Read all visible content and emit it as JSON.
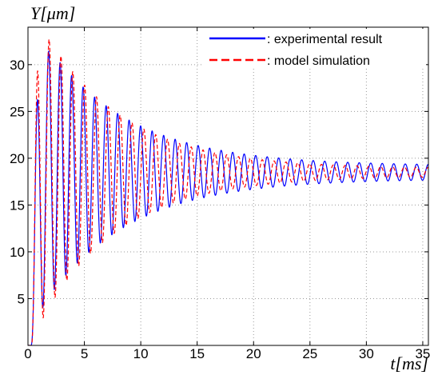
{
  "chart_data": {
    "type": "line",
    "title": "",
    "xlabel": "t[ms]",
    "ylabel": "Y[μm]",
    "xlim": [
      0,
      35.5
    ],
    "ylim": [
      0,
      34
    ],
    "x_ticks": [
      0,
      5,
      10,
      15,
      20,
      25,
      30,
      35
    ],
    "y_ticks": [
      5,
      10,
      15,
      20,
      25,
      30
    ],
    "grid": true,
    "legend_position": "top-right",
    "series": [
      {
        "name": ": experimental result",
        "color": "#0000ff",
        "style": "solid",
        "model": {
          "y_final": 18.5,
          "amp0": 15.5,
          "tau_ms": 7.5,
          "amp_floor": 0.7,
          "period_ms": 1.02,
          "t_start": 0.3,
          "rise_ms": 0.35
        }
      },
      {
        "name": ": model simulation",
        "color": "#ff0000",
        "style": "dashed",
        "model": {
          "y_final": 18.5,
          "amp0": 17.5,
          "tau_ms": 7.0,
          "amp_floor": 0.4,
          "period_ms": 1.05,
          "t_start": 0.3,
          "rise_ms": 0.3
        }
      }
    ]
  }
}
